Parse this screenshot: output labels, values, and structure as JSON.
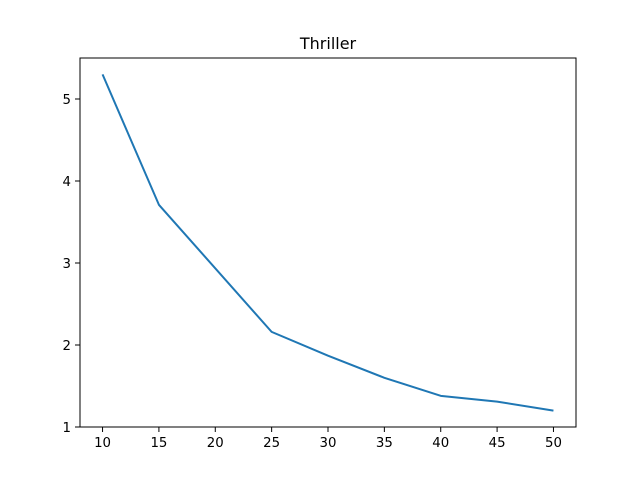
{
  "chart_data": {
    "type": "line",
    "title": "Thriller",
    "xlabel": "",
    "ylabel": "",
    "xlim": [
      8,
      52
    ],
    "ylim": [
      1,
      5.5
    ],
    "xticks": [
      10,
      15,
      20,
      25,
      30,
      35,
      40,
      45,
      50
    ],
    "yticks": [
      1,
      2,
      3,
      4,
      5
    ],
    "grid": false,
    "legend": "none",
    "series": [
      {
        "color": "#1f77b4",
        "x": [
          10,
          15,
          25,
          30,
          35,
          40,
          45,
          50
        ],
        "y": [
          5.3,
          3.71,
          2.16,
          1.87,
          1.6,
          1.38,
          1.31,
          1.2
        ]
      }
    ]
  }
}
